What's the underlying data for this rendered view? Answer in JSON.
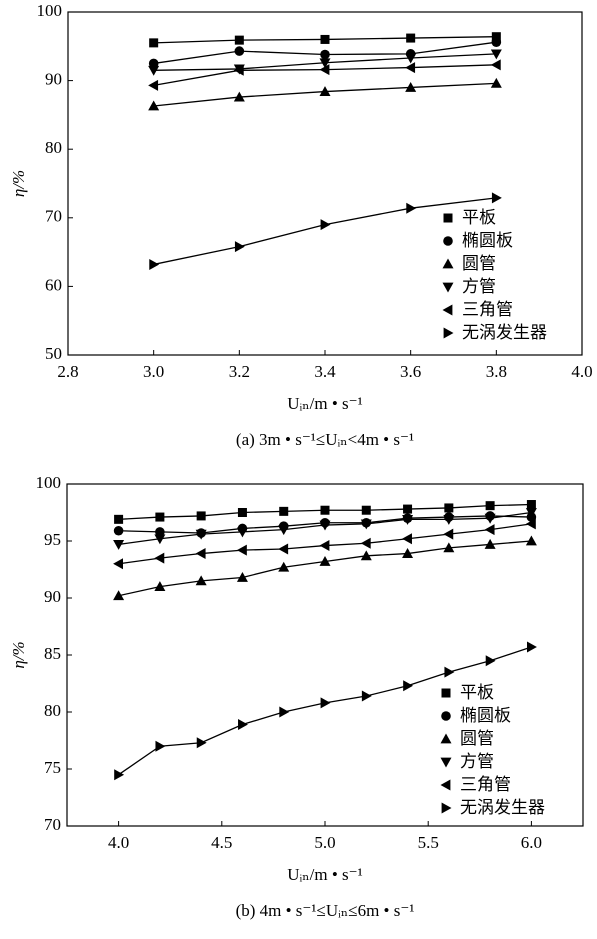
{
  "chart_data": [
    {
      "type": "line",
      "caption": "(a) 3m • s⁻¹≤Uᵢₙ<4m • s⁻¹",
      "x_label": "Uᵢₙ/m • s⁻¹",
      "y_label": "η/%",
      "xlim": [
        2.8,
        4.0
      ],
      "ylim": [
        50,
        100
      ],
      "xticks": [
        2.8,
        {
          "value": 3.0,
          "label": "3.0"
        },
        3.2,
        3.4,
        3.6,
        3.8,
        {
          "value": 4.0,
          "label": "4.0"
        }
      ],
      "yticks": [
        50,
        60,
        70,
        80,
        90,
        100
      ],
      "legend": "lower right",
      "x": [
        3.0,
        3.2,
        3.4,
        3.6,
        3.8
      ],
      "series": [
        {
          "name": "平板",
          "color": "#000000",
          "marker": "square",
          "values": [
            95.5,
            95.9,
            96.0,
            96.2,
            96.4
          ]
        },
        {
          "name": "椭圆板",
          "color": "#000000",
          "marker": "circle",
          "values": [
            92.5,
            94.3,
            93.8,
            93.9,
            95.6
          ]
        },
        {
          "name": "圆管",
          "color": "#000000",
          "marker": "triangle-up",
          "values": [
            86.3,
            87.6,
            88.4,
            89.0,
            89.6
          ]
        },
        {
          "name": "方管",
          "color": "#000000",
          "marker": "triangle-down",
          "values": [
            91.5,
            91.7,
            92.6,
            93.3,
            93.9
          ]
        },
        {
          "name": "三角管",
          "color": "#000000",
          "marker": "triangle-left",
          "values": [
            89.3,
            91.5,
            91.6,
            91.9,
            92.3
          ]
        },
        {
          "name": "无涡发生器",
          "color": "#000000",
          "marker": "triangle-right",
          "values": [
            63.2,
            65.8,
            69.0,
            71.4,
            72.9
          ]
        }
      ]
    },
    {
      "type": "line",
      "caption": "(b) 4m • s⁻¹≤Uᵢₙ≤6m • s⁻¹",
      "x_label": "Uᵢₙ/m • s⁻¹",
      "y_label": "η/%",
      "xlim": [
        3.75,
        6.25
      ],
      "ylim": [
        70,
        100
      ],
      "xticks": [
        {
          "value": 4.0,
          "label": "4.0"
        },
        4.5,
        {
          "value": 5.0,
          "label": "5.0"
        },
        5.5,
        {
          "value": 6.0,
          "label": "6.0"
        }
      ],
      "yticks": [
        70,
        75,
        80,
        85,
        90,
        95,
        100
      ],
      "legend": "lower right",
      "x": [
        4.0,
        4.2,
        4.4,
        4.6,
        4.8,
        5.0,
        5.2,
        5.4,
        5.6,
        5.8,
        6.0
      ],
      "series": [
        {
          "name": "平板",
          "color": "#000000",
          "marker": "square",
          "values": [
            96.9,
            97.1,
            97.2,
            97.5,
            97.6,
            97.7,
            97.7,
            97.8,
            97.9,
            98.1,
            98.2
          ]
        },
        {
          "name": "椭圆板",
          "color": "#000000",
          "marker": "circle",
          "values": [
            95.9,
            95.8,
            95.7,
            96.1,
            96.3,
            96.6,
            96.6,
            97.0,
            97.1,
            97.2,
            97.1
          ]
        },
        {
          "name": "圆管",
          "color": "#000000",
          "marker": "triangle-up",
          "values": [
            90.2,
            91.0,
            91.5,
            91.8,
            92.7,
            93.2,
            93.7,
            93.9,
            94.4,
            94.7,
            95.0
          ]
        },
        {
          "name": "方管",
          "color": "#000000",
          "marker": "triangle-down",
          "values": [
            94.7,
            95.2,
            95.6,
            95.8,
            96.0,
            96.4,
            96.5,
            96.9,
            96.9,
            97.0,
            97.5
          ]
        },
        {
          "name": "三角管",
          "color": "#000000",
          "marker": "triangle-left",
          "values": [
            93.0,
            93.5,
            93.9,
            94.2,
            94.3,
            94.6,
            94.8,
            95.2,
            95.6,
            96.0,
            96.5
          ]
        },
        {
          "name": "无涡发生器",
          "color": "#000000",
          "marker": "triangle-right",
          "values": [
            74.5,
            77.0,
            77.3,
            78.9,
            80.0,
            80.8,
            81.4,
            82.3,
            83.5,
            84.5,
            85.7
          ]
        }
      ]
    }
  ]
}
